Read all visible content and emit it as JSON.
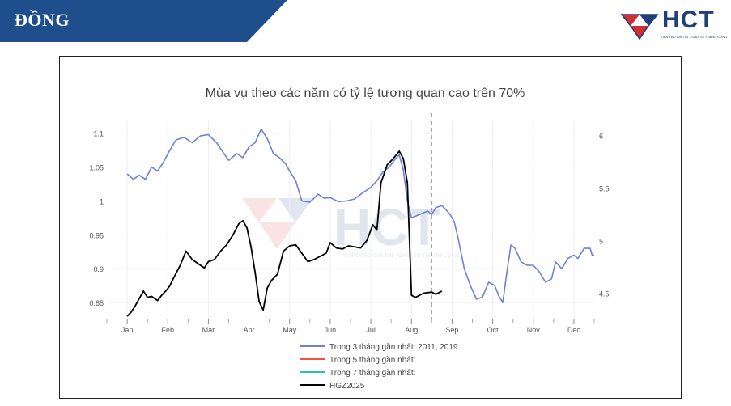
{
  "banner": {
    "title": "ĐỒNG",
    "color": "#1f4e8c"
  },
  "logo": {
    "text": "HCT",
    "tagline": "KIẾN TẠO GIÁ TRỊ – CHIA SẺ THÀNH CÔNG",
    "primary_color": "#1f3f7a",
    "accent_color": "#d32f2f"
  },
  "watermark": {
    "text": "HCT",
    "tagline": "KIẾN TẠO GIÁ TRỊ - CHIA SẺ THÀNH CÔNG"
  },
  "chart_data": {
    "type": "line",
    "title": "Mùa vụ theo các năm có tỷ lệ tương quan cao trên 70%",
    "x_ticks": [
      "Jan",
      "Feb",
      "Mar",
      "Apr",
      "May",
      "Jun",
      "Jul",
      "Aug",
      "Sep",
      "Oct",
      "Nov",
      "Dec"
    ],
    "y_left": {
      "ticks": [
        0.85,
        0.9,
        0.95,
        1,
        1.05,
        1.1
      ],
      "tick_labels": [
        "0.85",
        "0.9",
        "0.95",
        "1",
        "1.05",
        "1.1"
      ],
      "range": [
        0.825,
        1.12
      ]
    },
    "y_right": {
      "ticks": [
        4.5,
        5,
        5.5,
        6
      ],
      "tick_labels": [
        "4.5",
        "5",
        "5.5",
        "6"
      ],
      "range": [
        4.25,
        6.15
      ]
    },
    "vline_month": 8.5,
    "grid": true,
    "legend_position": "bottom",
    "series": [
      {
        "name": "Trong 3 tháng gần nhất: 2011, 2019",
        "color": "#6f7fdb",
        "axis": "left",
        "points": [
          [
            1.0,
            1.04
          ],
          [
            1.15,
            1.032
          ],
          [
            1.3,
            1.038
          ],
          [
            1.45,
            1.032
          ],
          [
            1.6,
            1.05
          ],
          [
            1.75,
            1.044
          ],
          [
            1.9,
            1.058
          ],
          [
            2.05,
            1.075
          ],
          [
            2.2,
            1.09
          ],
          [
            2.4,
            1.094
          ],
          [
            2.6,
            1.086
          ],
          [
            2.8,
            1.096
          ],
          [
            3.0,
            1.098
          ],
          [
            3.2,
            1.086
          ],
          [
            3.35,
            1.073
          ],
          [
            3.5,
            1.06
          ],
          [
            3.7,
            1.07
          ],
          [
            3.85,
            1.064
          ],
          [
            4.0,
            1.08
          ],
          [
            4.15,
            1.086
          ],
          [
            4.3,
            1.106
          ],
          [
            4.45,
            1.092
          ],
          [
            4.6,
            1.07
          ],
          [
            4.75,
            1.064
          ],
          [
            4.9,
            1.055
          ],
          [
            5.0,
            1.044
          ],
          [
            5.15,
            1.03
          ],
          [
            5.3,
            1.0
          ],
          [
            5.5,
            0.998
          ],
          [
            5.7,
            1.01
          ],
          [
            5.85,
            1.004
          ],
          [
            6.0,
            1.005
          ],
          [
            6.2,
            0.999
          ],
          [
            6.4,
            1.0
          ],
          [
            6.6,
            1.003
          ],
          [
            6.8,
            1.012
          ],
          [
            7.0,
            1.02
          ],
          [
            7.15,
            1.03
          ],
          [
            7.3,
            1.043
          ],
          [
            7.45,
            1.05
          ],
          [
            7.6,
            1.062
          ],
          [
            7.7,
            1.068
          ],
          [
            7.8,
            1.046
          ],
          [
            7.9,
            1.0
          ],
          [
            8.0,
            0.975
          ],
          [
            8.2,
            0.98
          ],
          [
            8.4,
            0.985
          ],
          [
            8.5,
            0.98
          ],
          [
            8.6,
            0.99
          ],
          [
            8.75,
            0.993
          ],
          [
            8.85,
            0.987
          ],
          [
            8.95,
            0.98
          ],
          [
            9.05,
            0.97
          ],
          [
            9.15,
            0.945
          ],
          [
            9.3,
            0.9
          ],
          [
            9.45,
            0.875
          ],
          [
            9.6,
            0.855
          ],
          [
            9.75,
            0.858
          ],
          [
            9.9,
            0.88
          ],
          [
            10.05,
            0.875
          ],
          [
            10.15,
            0.86
          ],
          [
            10.25,
            0.85
          ],
          [
            10.35,
            0.895
          ],
          [
            10.45,
            0.935
          ],
          [
            10.55,
            0.93
          ],
          [
            10.7,
            0.91
          ],
          [
            10.85,
            0.905
          ],
          [
            11.0,
            0.905
          ],
          [
            11.15,
            0.895
          ],
          [
            11.3,
            0.88
          ],
          [
            11.45,
            0.885
          ],
          [
            11.55,
            0.91
          ],
          [
            11.7,
            0.9
          ],
          [
            11.85,
            0.915
          ],
          [
            12.0,
            0.92
          ],
          [
            12.1,
            0.915
          ],
          [
            12.25,
            0.93
          ],
          [
            12.4,
            0.93
          ],
          [
            12.45,
            0.92
          ],
          [
            12.5,
            0.92
          ]
        ]
      },
      {
        "name": "Trong 5 tháng gần nhất:",
        "color": "#ef553b",
        "axis": "left",
        "points": []
      },
      {
        "name": "Trong 7 tháng gần nhất:",
        "color": "#2cc1a3",
        "axis": "left",
        "points": []
      },
      {
        "name": "HGZ2025",
        "color": "#000000",
        "axis": "right",
        "points": [
          [
            1.0,
            4.28
          ],
          [
            1.1,
            4.32
          ],
          [
            1.2,
            4.38
          ],
          [
            1.3,
            4.45
          ],
          [
            1.4,
            4.52
          ],
          [
            1.5,
            4.46
          ],
          [
            1.6,
            4.47
          ],
          [
            1.75,
            4.43
          ],
          [
            1.85,
            4.48
          ],
          [
            1.95,
            4.52
          ],
          [
            2.05,
            4.57
          ],
          [
            2.15,
            4.65
          ],
          [
            2.3,
            4.76
          ],
          [
            2.45,
            4.9
          ],
          [
            2.6,
            4.82
          ],
          [
            2.75,
            4.78
          ],
          [
            2.9,
            4.74
          ],
          [
            3.0,
            4.8
          ],
          [
            3.15,
            4.82
          ],
          [
            3.3,
            4.9
          ],
          [
            3.45,
            4.96
          ],
          [
            3.6,
            5.05
          ],
          [
            3.75,
            5.16
          ],
          [
            3.85,
            5.19
          ],
          [
            3.95,
            5.12
          ],
          [
            4.05,
            4.94
          ],
          [
            4.15,
            4.7
          ],
          [
            4.25,
            4.42
          ],
          [
            4.35,
            4.34
          ],
          [
            4.45,
            4.55
          ],
          [
            4.55,
            4.62
          ],
          [
            4.7,
            4.68
          ],
          [
            4.85,
            4.9
          ],
          [
            5.0,
            4.95
          ],
          [
            5.15,
            4.96
          ],
          [
            5.3,
            4.88
          ],
          [
            5.45,
            4.8
          ],
          [
            5.6,
            4.82
          ],
          [
            5.75,
            4.85
          ],
          [
            5.9,
            4.88
          ],
          [
            6.0,
            4.98
          ],
          [
            6.15,
            4.93
          ],
          [
            6.3,
            4.92
          ],
          [
            6.45,
            4.95
          ],
          [
            6.6,
            4.94
          ],
          [
            6.75,
            4.93
          ],
          [
            6.9,
            5.0
          ],
          [
            7.05,
            5.15
          ],
          [
            7.15,
            5.1
          ],
          [
            7.25,
            5.55
          ],
          [
            7.4,
            5.72
          ],
          [
            7.55,
            5.78
          ],
          [
            7.7,
            5.85
          ],
          [
            7.8,
            5.78
          ],
          [
            7.9,
            5.55
          ],
          [
            8.0,
            4.48
          ],
          [
            8.1,
            4.46
          ],
          [
            8.3,
            4.5
          ],
          [
            8.5,
            4.51
          ],
          [
            8.6,
            4.49
          ],
          [
            8.75,
            4.52
          ]
        ]
      }
    ]
  }
}
